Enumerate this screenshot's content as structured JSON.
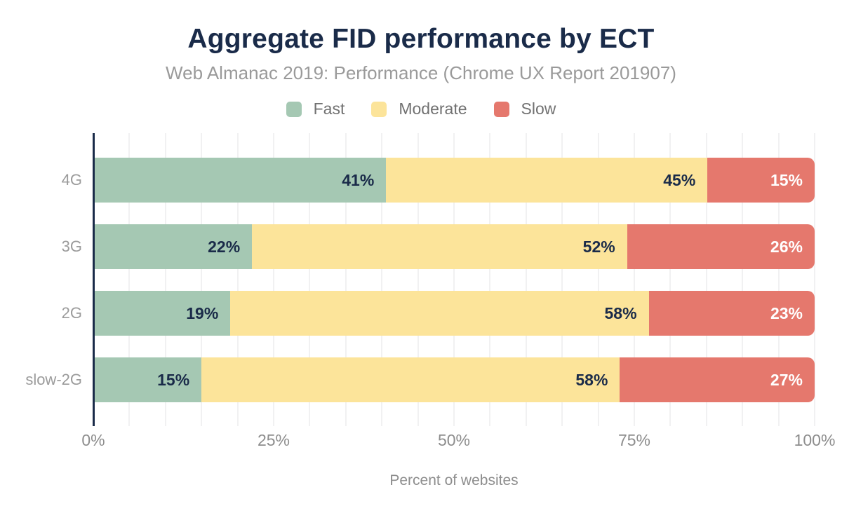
{
  "chart_data": {
    "type": "bar",
    "orientation": "horizontal",
    "stacked": true,
    "title": "Aggregate FID performance by ECT",
    "subtitle": "Web Almanac 2019: Performance (Chrome UX Report 201907)",
    "categories": [
      "4G",
      "3G",
      "2G",
      "slow-2G"
    ],
    "series": [
      {
        "name": "Fast",
        "color": "#a5c8b3",
        "label_color": "#1a2b49",
        "values": [
          41,
          22,
          19,
          15
        ]
      },
      {
        "name": "Moderate",
        "color": "#fce49a",
        "label_color": "#1a2b49",
        "values": [
          45,
          52,
          58,
          58
        ]
      },
      {
        "name": "Slow",
        "color": "#e5786d",
        "label_color": "#ffffff",
        "values": [
          15,
          26,
          23,
          27
        ]
      }
    ],
    "value_label_suffix": "%",
    "x_ticks": [
      {
        "label": "0%",
        "value": 0
      },
      {
        "label": "25%",
        "value": 25
      },
      {
        "label": "50%",
        "value": 50
      },
      {
        "label": "75%",
        "value": 75
      },
      {
        "label": "100%",
        "value": 100
      }
    ],
    "xlabel": "Percent of websites",
    "xlim": [
      0,
      100
    ],
    "grid": true,
    "grid_step_pct": 5,
    "legend_position": "top"
  },
  "colors": {
    "title_navy": "#1a2b49",
    "axis_line": "#1a2b49",
    "subtitle_gray": "#9a9a9a",
    "legend_text_gray": "#717171",
    "tick_text_gray": "#8d8d8d",
    "gridline": "#f1f1f2",
    "background": "#ffffff"
  }
}
